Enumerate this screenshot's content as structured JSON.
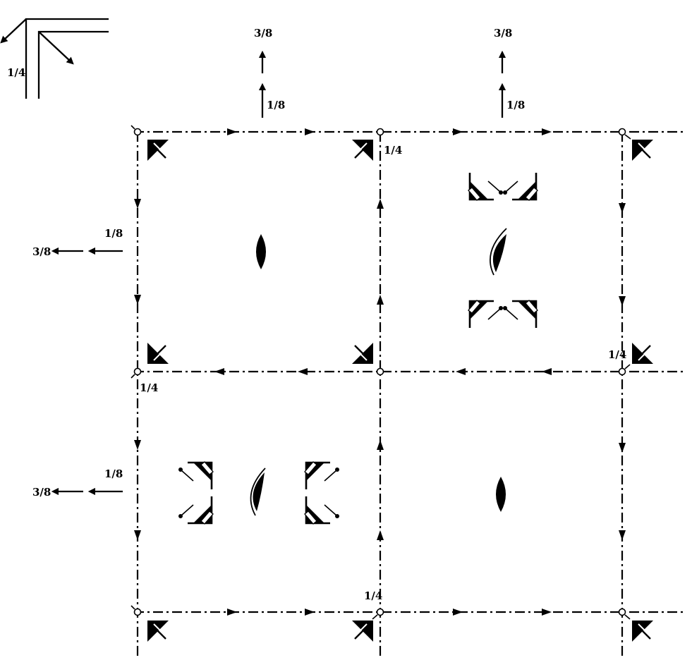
{
  "fractions": {
    "eighth": "1/8",
    "three_eighths": "3/8",
    "quarter": "1/4"
  },
  "colors": {
    "ink": "#000000",
    "paper": "#ffffff"
  }
}
